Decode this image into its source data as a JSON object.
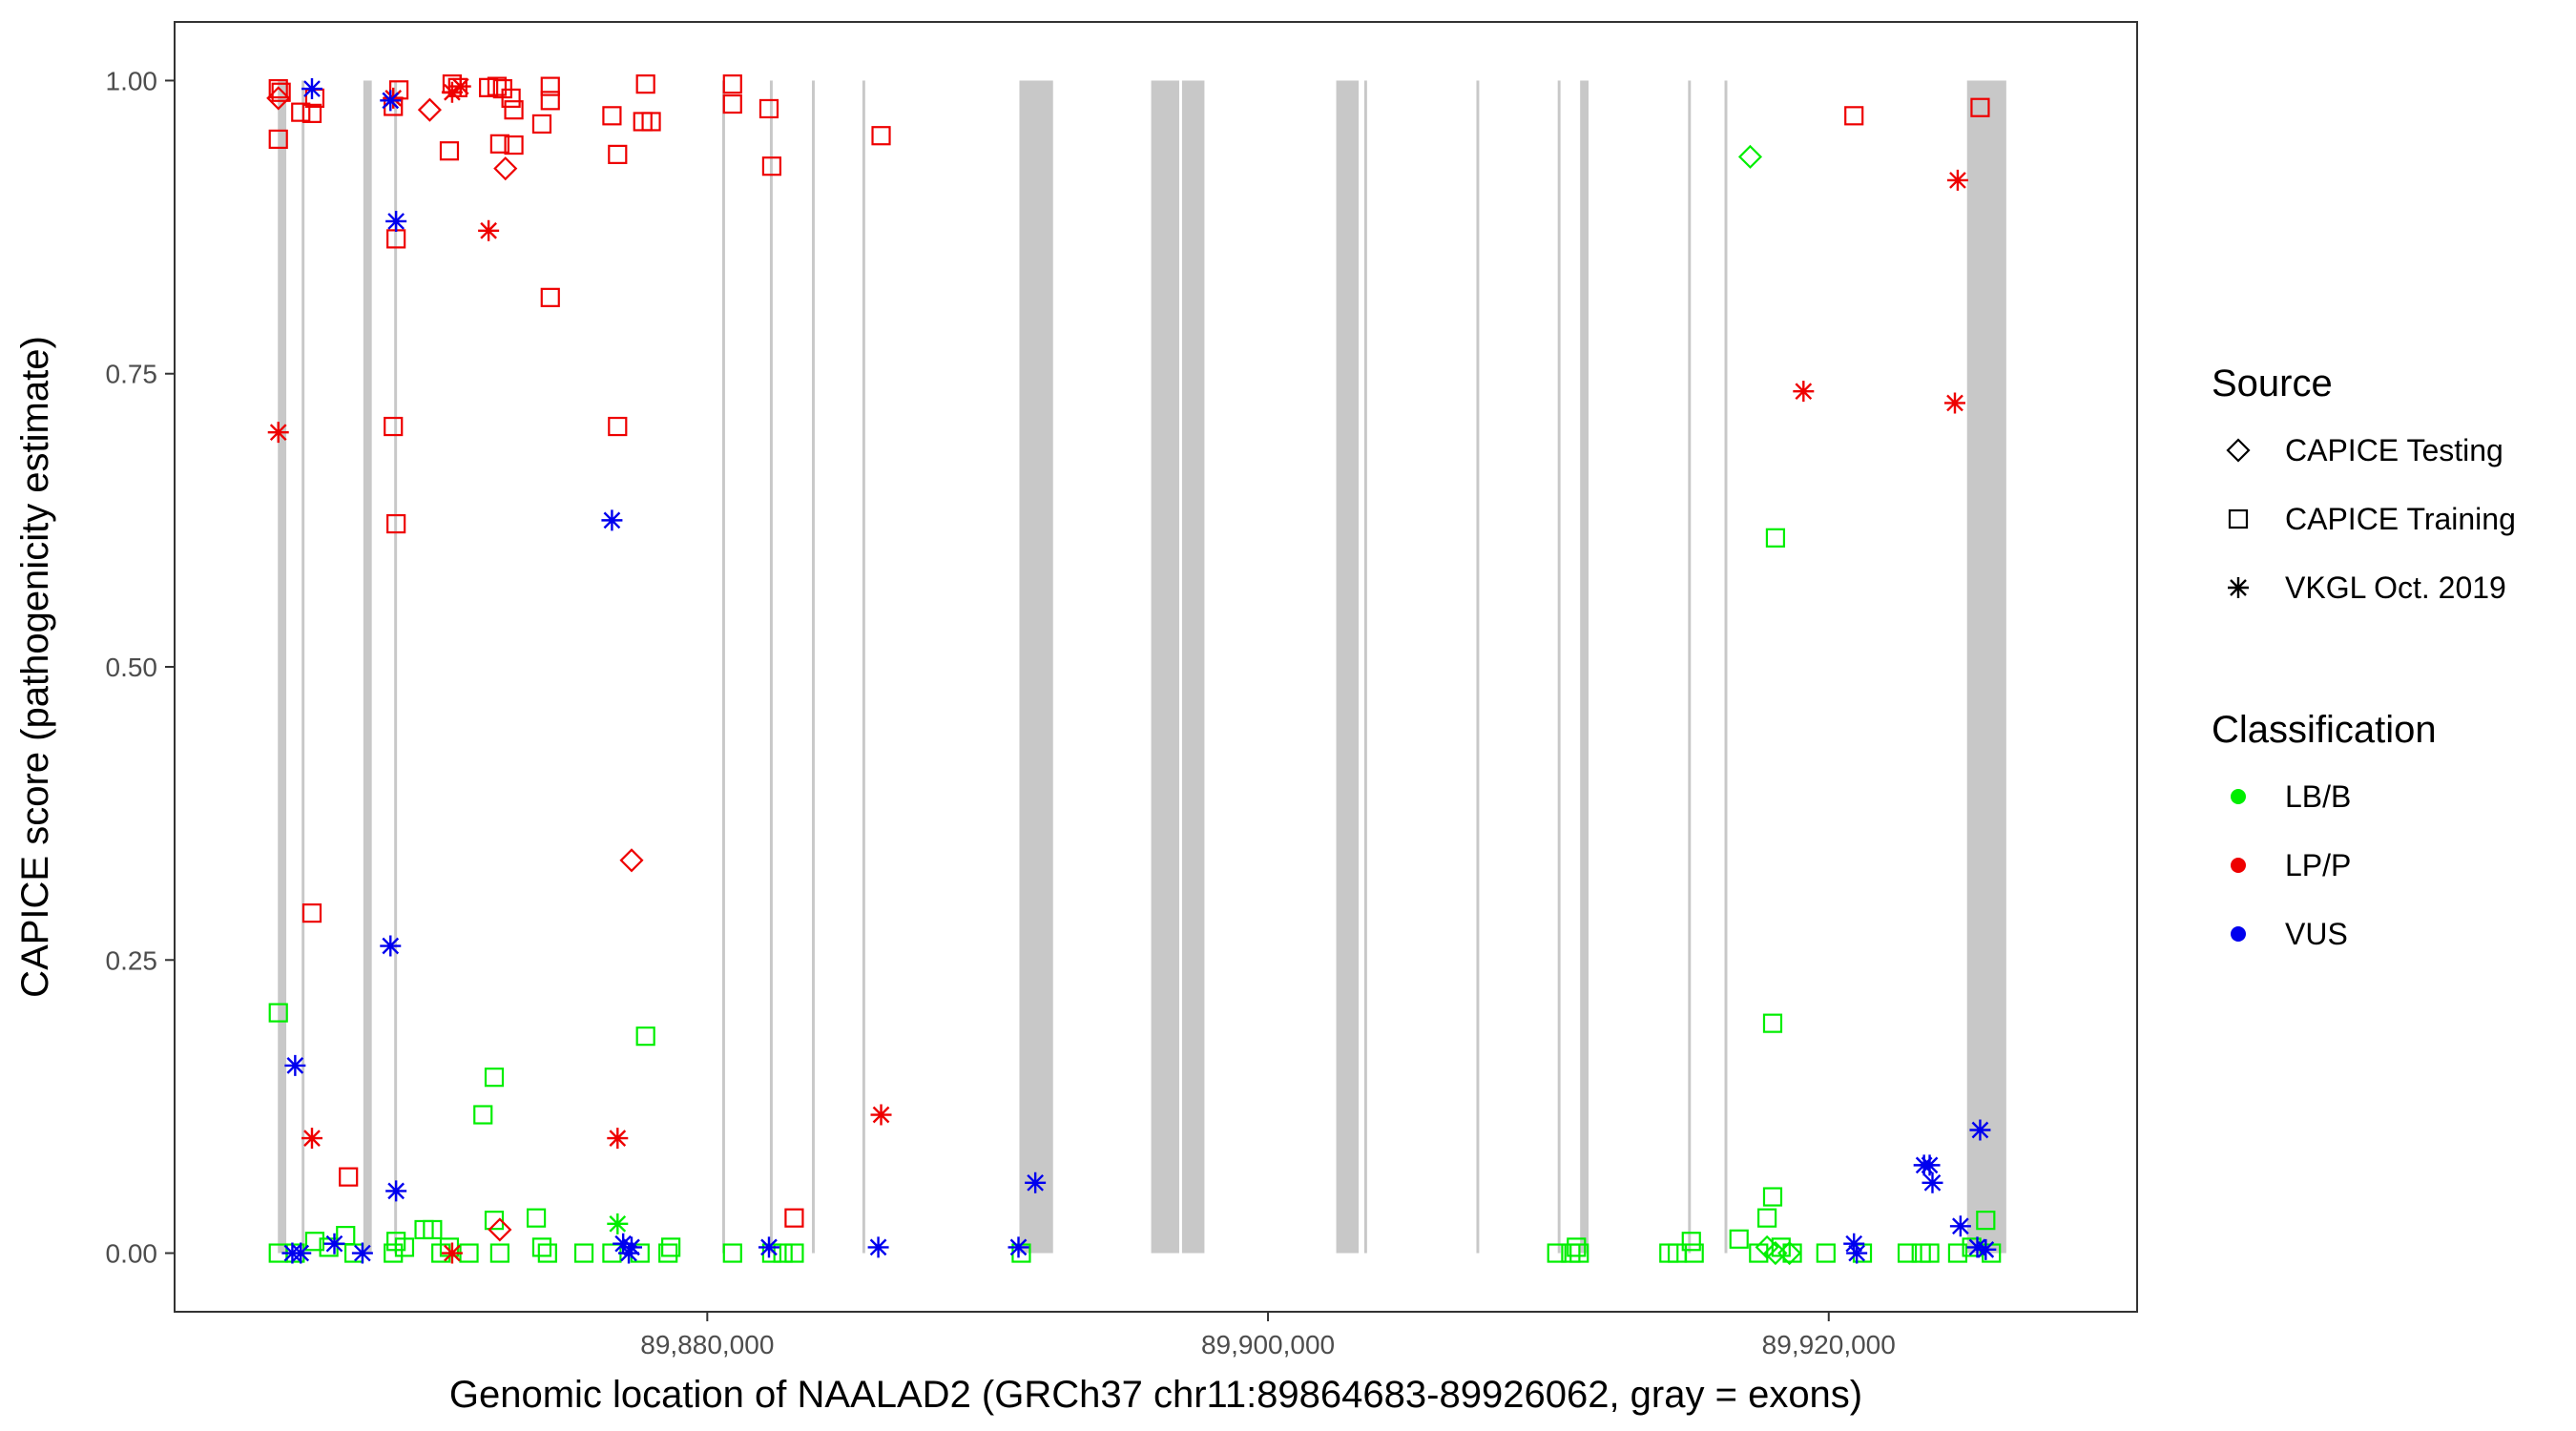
{
  "chart_data": {
    "type": "scatter",
    "xlabel": "Genomic location of NAALAD2 (GRCh37 chr11:89864683-89926062, gray = exons)",
    "ylabel": "CAPICE score (pathogenicity estimate)",
    "xlim": [
      89861000,
      89931000
    ],
    "ylim": [
      -0.05,
      1.05
    ],
    "x_ticks": [
      89880000,
      89900000,
      89920000
    ],
    "x_tick_labels": [
      "89,880,000",
      "89,900,000",
      "89,920,000"
    ],
    "y_ticks": [
      0.0,
      0.25,
      0.5,
      0.75,
      1.0
    ],
    "y_tick_labels": [
      "0.00",
      "0.25",
      "0.50",
      "0.75",
      "1.00"
    ],
    "grid": false,
    "legend_position": "right",
    "exons": [
      [
        89864683,
        89864983
      ],
      [
        89865533,
        89865633
      ],
      [
        89867733,
        89868033
      ],
      [
        89868833,
        89868933
      ],
      [
        89880533,
        89880633
      ],
      [
        89882233,
        89882333
      ],
      [
        89883733,
        89883833
      ],
      [
        89885533,
        89885633
      ],
      [
        89891133,
        89892333
      ],
      [
        89895833,
        89896833
      ],
      [
        89896933,
        89897733
      ],
      [
        89902433,
        89903233
      ],
      [
        89903433,
        89903533
      ],
      [
        89907433,
        89907533
      ],
      [
        89910333,
        89910433
      ],
      [
        89911133,
        89911433
      ],
      [
        89914983,
        89915083
      ],
      [
        89916283,
        89916383
      ],
      [
        89924933,
        89926333
      ]
    ],
    "legends": {
      "source": {
        "title": "Source",
        "entries": [
          {
            "key": "diamond",
            "label": "CAPICE Testing"
          },
          {
            "key": "square",
            "label": "CAPICE Training"
          },
          {
            "key": "asterisk",
            "label": "VKGL Oct. 2019"
          }
        ]
      },
      "classification": {
        "title": "Classification",
        "entries": [
          {
            "key": "LB/B",
            "label": "LB/B",
            "color": "#00ee00"
          },
          {
            "key": "LP/P",
            "label": "LP/P",
            "color": "#ee0000"
          },
          {
            "key": "VUS",
            "label": "VUS",
            "color": "#0000ee"
          }
        ]
      }
    },
    "series": [
      {
        "source": "CAPICE Training",
        "classification": "LP/P",
        "shape": "square",
        "color": "#ee0000",
        "points": [
          [
            89864700,
            0.993
          ],
          [
            89864800,
            0.99
          ],
          [
            89864700,
            0.95
          ],
          [
            89865500,
            0.973
          ],
          [
            89865900,
            0.972
          ],
          [
            89866000,
            0.985
          ],
          [
            89865900,
            0.29
          ],
          [
            89867200,
            0.065
          ],
          [
            89868800,
            0.978
          ],
          [
            89869000,
            0.992
          ],
          [
            89868900,
            0.865
          ],
          [
            89868800,
            0.705
          ],
          [
            89868900,
            0.622
          ],
          [
            89870800,
            0.94
          ],
          [
            89870900,
            0.997
          ],
          [
            89871100,
            0.994
          ],
          [
            89872200,
            0.994
          ],
          [
            89872500,
            0.995
          ],
          [
            89872700,
            0.993
          ],
          [
            89872600,
            0.946
          ],
          [
            89873000,
            0.985
          ],
          [
            89873100,
            0.945
          ],
          [
            89873100,
            0.975
          ],
          [
            89874100,
            0.963
          ],
          [
            89874400,
            0.995
          ],
          [
            89874400,
            0.983
          ],
          [
            89874400,
            0.815
          ],
          [
            89876600,
            0.97
          ],
          [
            89876800,
            0.937
          ],
          [
            89876800,
            0.705
          ],
          [
            89877700,
            0.965
          ],
          [
            89878000,
            0.965
          ],
          [
            89877800,
            0.997
          ],
          [
            89880900,
            0.997
          ],
          [
            89880900,
            0.98
          ],
          [
            89882200,
            0.976
          ],
          [
            89882300,
            0.927
          ],
          [
            89883100,
            0.03
          ],
          [
            89886200,
            0.953
          ],
          [
            89920900,
            0.97
          ],
          [
            89925400,
            0.977
          ]
        ]
      },
      {
        "source": "CAPICE Training",
        "classification": "LB/B",
        "shape": "square",
        "color": "#00ee00",
        "points": [
          [
            89864700,
            0.205
          ],
          [
            89864700,
            0.0
          ],
          [
            89865300,
            0.0
          ],
          [
            89866000,
            0.01
          ],
          [
            89866500,
            0.005
          ],
          [
            89867100,
            0.015
          ],
          [
            89867400,
            0.0
          ],
          [
            89868800,
            0.0
          ],
          [
            89868900,
            0.01
          ],
          [
            89869200,
            0.005
          ],
          [
            89869900,
            0.02
          ],
          [
            89870200,
            0.02
          ],
          [
            89870500,
            0.0
          ],
          [
            89870800,
            0.005
          ],
          [
            89871500,
            0.0
          ],
          [
            89872000,
            0.118
          ],
          [
            89872400,
            0.15
          ],
          [
            89872400,
            0.028
          ],
          [
            89872600,
            0.0
          ],
          [
            89873900,
            0.03
          ],
          [
            89874100,
            0.005
          ],
          [
            89874300,
            0.0
          ],
          [
            89875600,
            0.0
          ],
          [
            89876600,
            0.0
          ],
          [
            89877600,
            0.0
          ],
          [
            89877800,
            0.185
          ],
          [
            89878600,
            0.0
          ],
          [
            89878700,
            0.005
          ],
          [
            89880900,
            0.0
          ],
          [
            89882300,
            0.0
          ],
          [
            89882700,
            0.0
          ],
          [
            89883100,
            0.0
          ],
          [
            89891200,
            0.0
          ],
          [
            89910300,
            0.0
          ],
          [
            89910800,
            0.0
          ],
          [
            89911000,
            0.005
          ],
          [
            89911100,
            0.0
          ],
          [
            89914300,
            0.0
          ],
          [
            89914600,
            0.0
          ],
          [
            89915100,
            0.01
          ],
          [
            89915200,
            0.0
          ],
          [
            89916800,
            0.012
          ],
          [
            89917500,
            0.0
          ],
          [
            89917800,
            0.03
          ],
          [
            89918000,
            0.048
          ],
          [
            89918100,
            0.61
          ],
          [
            89918000,
            0.196
          ],
          [
            89918300,
            0.005
          ],
          [
            89918700,
            0.0
          ],
          [
            89919900,
            0.0
          ],
          [
            89921200,
            0.0
          ],
          [
            89922800,
            0.0
          ],
          [
            89923300,
            0.0
          ],
          [
            89923600,
            0.0
          ],
          [
            89924600,
            0.0
          ],
          [
            89925100,
            0.005
          ],
          [
            89925600,
            0.028
          ],
          [
            89925800,
            0.0
          ]
        ]
      },
      {
        "source": "CAPICE Testing",
        "classification": "LP/P",
        "shape": "diamond",
        "color": "#ee0000",
        "points": [
          [
            89864700,
            0.985
          ],
          [
            89870100,
            0.975
          ],
          [
            89872800,
            0.925
          ],
          [
            89872600,
            0.02
          ],
          [
            89877300,
            0.335
          ]
        ]
      },
      {
        "source": "CAPICE Testing",
        "classification": "LB/B",
        "shape": "diamond",
        "color": "#00ee00",
        "points": [
          [
            89917200,
            0.935
          ],
          [
            89917800,
            0.005
          ],
          [
            89918100,
            0.0
          ],
          [
            89918600,
            0.0
          ]
        ]
      },
      {
        "source": "VKGL Oct. 2019",
        "classification": "LP/P",
        "shape": "asterisk",
        "color": "#ee0000",
        "points": [
          [
            89864700,
            0.7
          ],
          [
            89865900,
            0.098
          ],
          [
            89868800,
            0.985
          ],
          [
            89870900,
            0.99
          ],
          [
            89871200,
            0.995
          ],
          [
            89870900,
            0.0
          ],
          [
            89872200,
            0.872
          ],
          [
            89876800,
            0.098
          ],
          [
            89886200,
            0.118
          ],
          [
            89919100,
            0.735
          ],
          [
            89924600,
            0.915
          ],
          [
            89924500,
            0.725
          ]
        ]
      },
      {
        "source": "VKGL Oct. 2019",
        "classification": "LB/B",
        "shape": "asterisk",
        "color": "#00ee00",
        "points": [
          [
            89876800,
            0.025
          ]
        ]
      },
      {
        "source": "VKGL Oct. 2019",
        "classification": "VUS",
        "shape": "asterisk",
        "color": "#0000ee",
        "points": [
          [
            89865900,
            0.993
          ],
          [
            89865300,
            0.16
          ],
          [
            89865200,
            0.0
          ],
          [
            89865500,
            0.0
          ],
          [
            89866700,
            0.008
          ],
          [
            89867700,
            0.0
          ],
          [
            89868700,
            0.983
          ],
          [
            89868900,
            0.88
          ],
          [
            89868700,
            0.262
          ],
          [
            89868900,
            0.053
          ],
          [
            89876600,
            0.625
          ],
          [
            89877000,
            0.008
          ],
          [
            89877300,
            0.005
          ],
          [
            89877200,
            0.0
          ],
          [
            89882200,
            0.005
          ],
          [
            89886100,
            0.005
          ],
          [
            89891100,
            0.005
          ],
          [
            89891700,
            0.06
          ],
          [
            89920900,
            0.008
          ],
          [
            89921000,
            0.0
          ],
          [
            89923400,
            0.075
          ],
          [
            89923600,
            0.075
          ],
          [
            89923700,
            0.06
          ],
          [
            89924700,
            0.023
          ],
          [
            89925300,
            0.005
          ],
          [
            89925600,
            0.003
          ],
          [
            89925400,
            0.105
          ]
        ]
      }
    ]
  }
}
